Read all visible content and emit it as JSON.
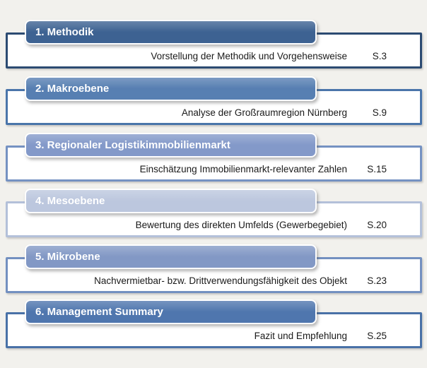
{
  "page": {
    "background_color": "#f2f1ed",
    "box_fill_color": "#ffffff",
    "title_text_color": "#ffffff",
    "body_text_color": "#1a1a1a"
  },
  "toc": {
    "items": [
      {
        "title": "1. Methodik",
        "description": "Vorstellung der Methodik und Vorgehensweise",
        "page": "S.3",
        "bar_color": "#3d6292",
        "border_color": "#2c4b72"
      },
      {
        "title": "2. Makroebene",
        "description": "Analyse der Großraumregion Nürnberg",
        "page": "S.9",
        "bar_color": "#577fb2",
        "border_color": "#4a75aa"
      },
      {
        "title": "3. Regionaler Logistikimmobilienmarkt",
        "description": "Einschätzung Immobilienmarkt-relevanter Zahlen",
        "page": "S.15",
        "bar_color": "#8399c9",
        "border_color": "#7592c2"
      },
      {
        "title": "4. Mesoebene",
        "description": "Bewertung des direkten Umfelds (Gewerbegebiet)",
        "page": "S.20",
        "bar_color": "#bcc7de",
        "border_color": "#b3c0d9"
      },
      {
        "title": "5. Mikrobene",
        "description": "Nachvermietbar- bzw. Drittverwendungsfähigkeit des Objekt",
        "page": "S.23",
        "bar_color": "#8298c5",
        "border_color": "#7390c0"
      },
      {
        "title": "6. Management Summary",
        "description": "Fazit und Empfehlung",
        "page": "S.25",
        "bar_color": "#4f76ae",
        "border_color": "#4971a7"
      }
    ]
  }
}
